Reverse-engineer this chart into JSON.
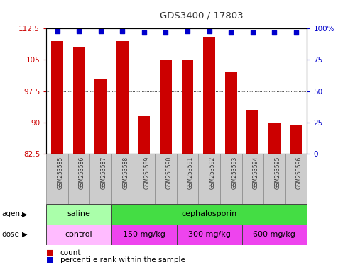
{
  "title": "GDS3400 / 17803",
  "categories": [
    "GSM253585",
    "GSM253586",
    "GSM253587",
    "GSM253588",
    "GSM253589",
    "GSM253590",
    "GSM253591",
    "GSM253592",
    "GSM253593",
    "GSM253594",
    "GSM253595",
    "GSM253596"
  ],
  "bar_values": [
    109.5,
    108.0,
    100.5,
    109.5,
    91.5,
    105.0,
    105.0,
    110.5,
    102.0,
    93.0,
    90.0,
    89.5
  ],
  "percentile_values": [
    98,
    98,
    98,
    98,
    97,
    97,
    98,
    98,
    97,
    97,
    97,
    97
  ],
  "bar_color": "#cc0000",
  "percentile_color": "#0000cc",
  "ylim_left": [
    82.5,
    112.5
  ],
  "ylim_right": [
    0,
    100
  ],
  "yticks_left": [
    82.5,
    90.0,
    97.5,
    105.0,
    112.5
  ],
  "yticks_right": [
    0,
    25,
    50,
    75,
    100
  ],
  "ytick_labels_left": [
    "82.5",
    "90",
    "97.5",
    "105",
    "112.5"
  ],
  "ytick_labels_right": [
    "0",
    "25",
    "50",
    "75",
    "100%"
  ],
  "agent_groups": [
    {
      "label": "saline",
      "start": 0,
      "end": 3,
      "color": "#aaffaa"
    },
    {
      "label": "cephalosporin",
      "start": 3,
      "end": 12,
      "color": "#44dd44"
    }
  ],
  "dose_groups": [
    {
      "label": "control",
      "start": 0,
      "end": 3,
      "color": "#ffbbff"
    },
    {
      "label": "150 mg/kg",
      "start": 3,
      "end": 6,
      "color": "#ee44ee"
    },
    {
      "label": "300 mg/kg",
      "start": 6,
      "end": 9,
      "color": "#ee44ee"
    },
    {
      "label": "600 mg/kg",
      "start": 9,
      "end": 12,
      "color": "#ee44ee"
    }
  ],
  "legend_items": [
    {
      "label": "count",
      "color": "#cc0000",
      "marker": "s"
    },
    {
      "label": "percentile rank within the sample",
      "color": "#0000cc",
      "marker": "s"
    }
  ],
  "tick_label_color_left": "#cc0000",
  "tick_label_color_right": "#0000cc",
  "bar_width": 0.55,
  "xticklabel_bg": "#cccccc"
}
